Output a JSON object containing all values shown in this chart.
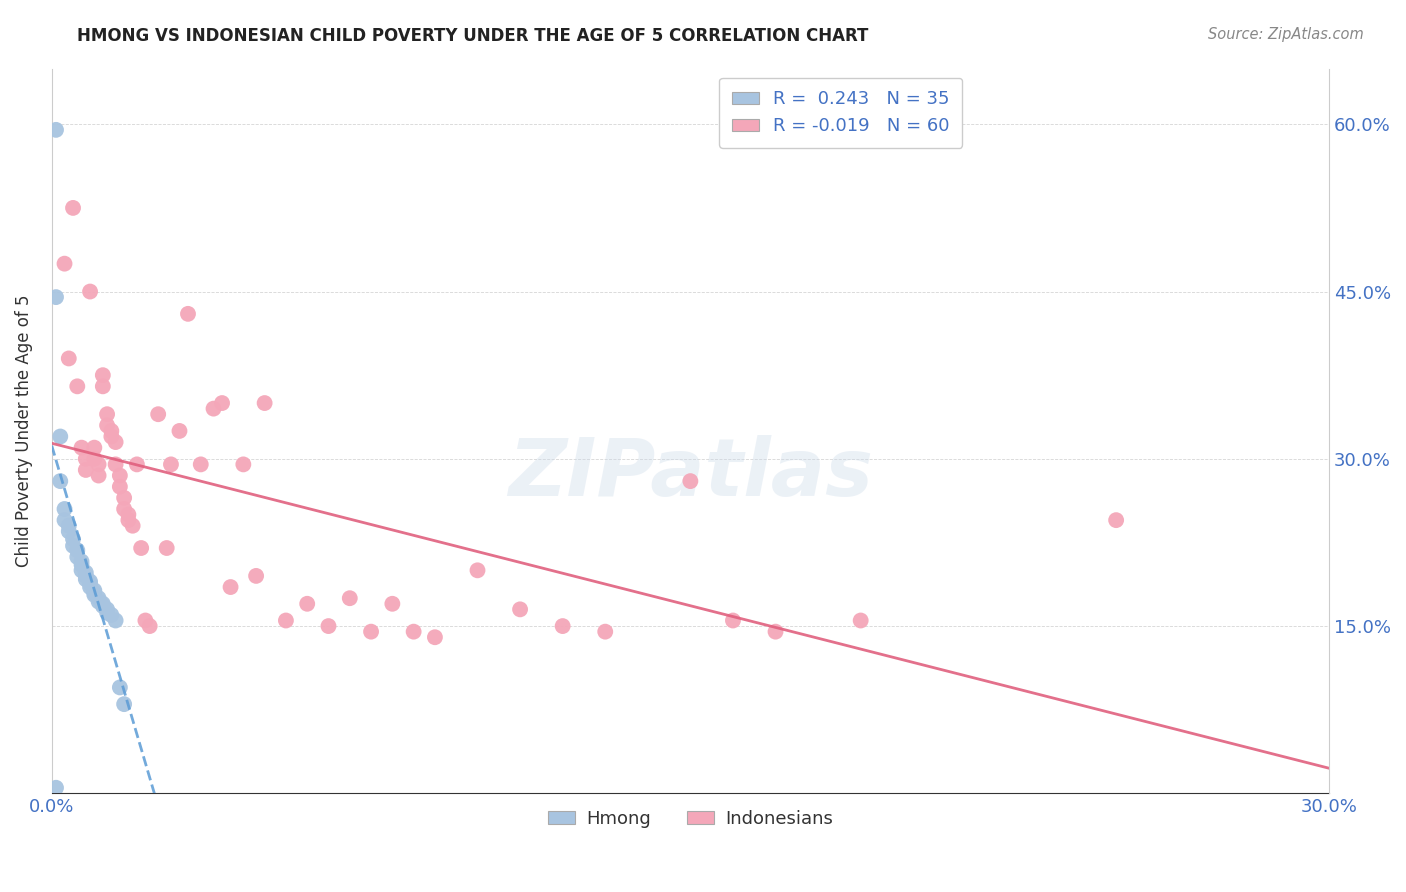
{
  "title": "HMONG VS INDONESIAN CHILD POVERTY UNDER THE AGE OF 5 CORRELATION CHART",
  "source": "Source: ZipAtlas.com",
  "ylabel": "Child Poverty Under the Age of 5",
  "xmin": 0.0,
  "xmax": 0.3,
  "ymin": 0.0,
  "ymax": 0.65,
  "xtick_vals": [
    0.0,
    0.05,
    0.1,
    0.15,
    0.2,
    0.25,
    0.3
  ],
  "ytick_vals": [
    0.0,
    0.15,
    0.3,
    0.45,
    0.6
  ],
  "hmong_R": 0.243,
  "hmong_N": 35,
  "indonesian_R": -0.019,
  "indonesian_N": 60,
  "hmong_color": "#a8c4e0",
  "indonesian_color": "#f4a7b9",
  "hmong_line_color": "#5b9bd5",
  "indonesian_line_color": "#e0607e",
  "tick_color": "#4472c4",
  "watermark_text": "ZIPatlas",
  "hmong_points": [
    [
      0.001,
      0.595
    ],
    [
      0.001,
      0.445
    ],
    [
      0.002,
      0.32
    ],
    [
      0.002,
      0.28
    ],
    [
      0.003,
      0.255
    ],
    [
      0.003,
      0.245
    ],
    [
      0.004,
      0.24
    ],
    [
      0.004,
      0.235
    ],
    [
      0.005,
      0.228
    ],
    [
      0.005,
      0.222
    ],
    [
      0.006,
      0.218
    ],
    [
      0.006,
      0.212
    ],
    [
      0.007,
      0.208
    ],
    [
      0.007,
      0.205
    ],
    [
      0.007,
      0.2
    ],
    [
      0.008,
      0.198
    ],
    [
      0.008,
      0.195
    ],
    [
      0.008,
      0.192
    ],
    [
      0.009,
      0.19
    ],
    [
      0.009,
      0.188
    ],
    [
      0.009,
      0.185
    ],
    [
      0.01,
      0.182
    ],
    [
      0.01,
      0.18
    ],
    [
      0.01,
      0.178
    ],
    [
      0.011,
      0.175
    ],
    [
      0.011,
      0.172
    ],
    [
      0.012,
      0.17
    ],
    [
      0.012,
      0.168
    ],
    [
      0.013,
      0.165
    ],
    [
      0.013,
      0.162
    ],
    [
      0.014,
      0.16
    ],
    [
      0.015,
      0.155
    ],
    [
      0.016,
      0.095
    ],
    [
      0.017,
      0.08
    ],
    [
      0.001,
      0.005
    ]
  ],
  "indonesian_points": [
    [
      0.003,
      0.475
    ],
    [
      0.004,
      0.39
    ],
    [
      0.005,
      0.525
    ],
    [
      0.006,
      0.365
    ],
    [
      0.007,
      0.31
    ],
    [
      0.008,
      0.3
    ],
    [
      0.008,
      0.29
    ],
    [
      0.009,
      0.45
    ],
    [
      0.01,
      0.31
    ],
    [
      0.01,
      0.3
    ],
    [
      0.011,
      0.295
    ],
    [
      0.011,
      0.285
    ],
    [
      0.012,
      0.375
    ],
    [
      0.012,
      0.365
    ],
    [
      0.013,
      0.34
    ],
    [
      0.013,
      0.33
    ],
    [
      0.014,
      0.325
    ],
    [
      0.014,
      0.32
    ],
    [
      0.015,
      0.315
    ],
    [
      0.015,
      0.295
    ],
    [
      0.016,
      0.285
    ],
    [
      0.016,
      0.275
    ],
    [
      0.017,
      0.265
    ],
    [
      0.017,
      0.255
    ],
    [
      0.018,
      0.25
    ],
    [
      0.018,
      0.245
    ],
    [
      0.019,
      0.24
    ],
    [
      0.02,
      0.295
    ],
    [
      0.021,
      0.22
    ],
    [
      0.022,
      0.155
    ],
    [
      0.023,
      0.15
    ],
    [
      0.025,
      0.34
    ],
    [
      0.027,
      0.22
    ],
    [
      0.028,
      0.295
    ],
    [
      0.03,
      0.325
    ],
    [
      0.032,
      0.43
    ],
    [
      0.035,
      0.295
    ],
    [
      0.038,
      0.345
    ],
    [
      0.04,
      0.35
    ],
    [
      0.042,
      0.185
    ],
    [
      0.045,
      0.295
    ],
    [
      0.048,
      0.195
    ],
    [
      0.05,
      0.35
    ],
    [
      0.055,
      0.155
    ],
    [
      0.06,
      0.17
    ],
    [
      0.065,
      0.15
    ],
    [
      0.07,
      0.175
    ],
    [
      0.075,
      0.145
    ],
    [
      0.08,
      0.17
    ],
    [
      0.085,
      0.145
    ],
    [
      0.09,
      0.14
    ],
    [
      0.1,
      0.2
    ],
    [
      0.11,
      0.165
    ],
    [
      0.12,
      0.15
    ],
    [
      0.13,
      0.145
    ],
    [
      0.15,
      0.28
    ],
    [
      0.16,
      0.155
    ],
    [
      0.17,
      0.145
    ],
    [
      0.19,
      0.155
    ],
    [
      0.25,
      0.245
    ]
  ]
}
